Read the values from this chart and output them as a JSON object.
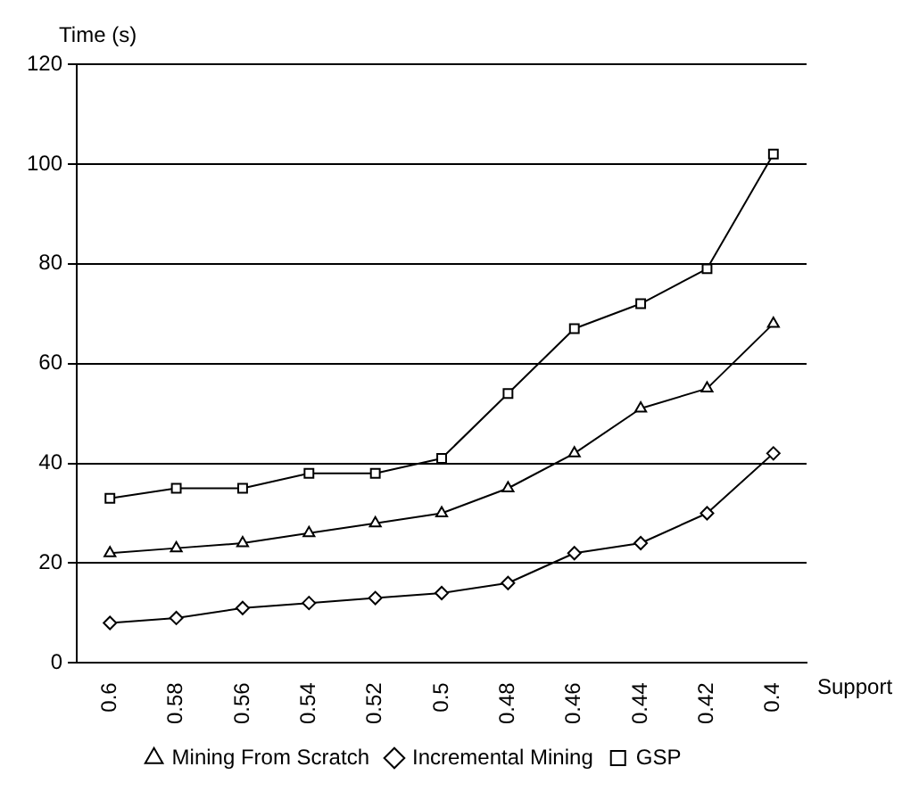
{
  "chart_data": {
    "type": "line",
    "xlabel": "Support",
    "ylabel": "Time (s)",
    "categories": [
      "0.6",
      "0.58",
      "0.56",
      "0.54",
      "0.52",
      "0.5",
      "0.48",
      "0.46",
      "0.44",
      "0.42",
      "0.4"
    ],
    "series": [
      {
        "name": "Mining From Scratch",
        "color": "#000000",
        "marker": "triangle",
        "values": [
          22,
          23,
          24,
          26,
          28,
          30,
          35,
          42,
          51,
          55,
          68
        ]
      },
      {
        "name": "Incremental Mining",
        "color": "#000000",
        "marker": "diamond",
        "values": [
          8,
          9,
          11,
          12,
          13,
          14,
          16,
          22,
          24,
          30,
          42
        ]
      },
      {
        "name": "GSP",
        "color": "#000000",
        "marker": "square",
        "values": [
          33,
          35,
          35,
          38,
          38,
          41,
          54,
          67,
          72,
          79,
          102
        ]
      }
    ],
    "ylim": [
      0,
      120
    ],
    "yticks": [
      0,
      20,
      40,
      60,
      80,
      100,
      120
    ],
    "grid": "y",
    "legend": "bottom",
    "line_style": "solid"
  }
}
